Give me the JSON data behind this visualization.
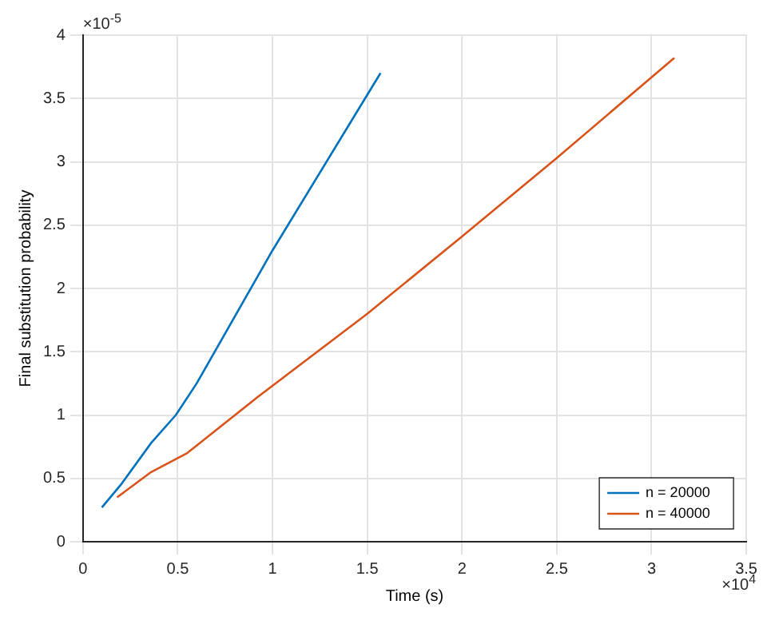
{
  "chart_data": {
    "type": "line",
    "xlabel": "Time (s)",
    "ylabel": "Final substitution probability",
    "xlim": [
      0,
      3.5
    ],
    "ylim": [
      0,
      4
    ],
    "xticks": [
      0,
      0.5,
      1,
      1.5,
      2,
      2.5,
      3,
      3.5
    ],
    "yticks": [
      0,
      0.5,
      1,
      1.5,
      2,
      2.5,
      3,
      3.5,
      4
    ],
    "series": [
      {
        "name": "n = 20000",
        "color": "#0072bd",
        "x": [
          0.1,
          0.2,
          0.36,
          0.49,
          0.6,
          1,
          1.57
        ],
        "values": [
          0.27,
          0.45,
          0.78,
          1,
          1.25,
          2.3,
          3.7
        ]
      },
      {
        "name": "n = 40000",
        "color": "#d95319",
        "x": [
          0.18,
          0.36,
          0.55,
          0.92,
          1.5,
          2,
          2.5,
          3.12
        ],
        "values": [
          0.35,
          0.55,
          0.7,
          1.14,
          1.8,
          2.41,
          3.03,
          3.82
        ]
      }
    ],
    "annotations": [
      "×10$^{-5}$",
      "×10$^{4}$"
    ],
    "grid": true,
    "legend": "bottom right",
    "marker": "none",
    "line_style": "solid"
  }
}
